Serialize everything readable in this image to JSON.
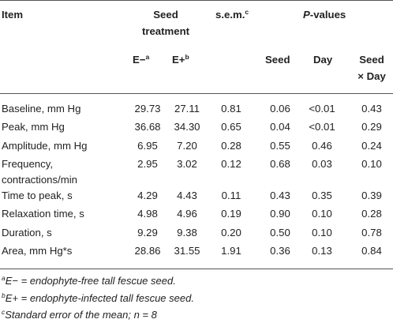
{
  "header": {
    "item": "Item",
    "seed_treatment_line1": "Seed",
    "seed_treatment_line2": "treatment",
    "sem": "s.e.m.",
    "sem_sup": "c",
    "pvalues_p": "P",
    "pvalues_rest": "-values",
    "e_minus": "E−",
    "e_minus_sup": "a",
    "e_plus": "E+",
    "e_plus_sup": "b",
    "seed": "Seed",
    "day": "Day",
    "seed_x_day_line1": "Seed",
    "seed_x_day_line2": "× Day"
  },
  "rows": [
    {
      "item": [
        "Baseline, mm Hg"
      ],
      "e_minus": "29.73",
      "e_plus": "27.11",
      "sem": "0.81",
      "p_seed": "0.06",
      "p_day": "<0.01",
      "p_seed_day": "0.43"
    },
    {
      "item": [
        "Peak, mm Hg"
      ],
      "e_minus": "36.68",
      "e_plus": "34.30",
      "sem": "0.65",
      "p_seed": "0.04",
      "p_day": "<0.01",
      "p_seed_day": "0.29"
    },
    {
      "item": [
        "Amplitude, mm Hg"
      ],
      "e_minus": "6.95",
      "e_plus": "7.20",
      "sem": "0.28",
      "p_seed": "0.55",
      "p_day": "0.46",
      "p_seed_day": "0.24"
    },
    {
      "item": [
        "Frequency,",
        "contractions/min"
      ],
      "e_minus": "2.95",
      "e_plus": "3.02",
      "sem": "0.12",
      "p_seed": "0.68",
      "p_day": "0.03",
      "p_seed_day": "0.10"
    },
    {
      "item": [
        "Time to peak, s"
      ],
      "e_minus": "4.29",
      "e_plus": "4.43",
      "sem": "0.11",
      "p_seed": "0.43",
      "p_day": "0.35",
      "p_seed_day": "0.39"
    },
    {
      "item": [
        "Relaxation time, s"
      ],
      "e_minus": "4.98",
      "e_plus": "4.96",
      "sem": "0.19",
      "p_seed": "0.90",
      "p_day": "0.10",
      "p_seed_day": "0.28"
    },
    {
      "item": [
        "Duration, s"
      ],
      "e_minus": "9.29",
      "e_plus": "9.38",
      "sem": "0.20",
      "p_seed": "0.50",
      "p_day": "0.10",
      "p_seed_day": "0.78"
    },
    {
      "item": [
        "Area, mm Hg*s"
      ],
      "e_minus": "28.86",
      "e_plus": "31.55",
      "sem": "1.91",
      "p_seed": "0.36",
      "p_day": "0.13",
      "p_seed_day": "0.84"
    }
  ],
  "footnotes": [
    {
      "mark": "a",
      "text": "E− = endophyte-free tall fescue seed."
    },
    {
      "mark": "b",
      "text": "E+ = endophyte-infected tall fescue seed."
    },
    {
      "mark": "c",
      "text": "Standard error of the mean; n = 8"
    }
  ]
}
